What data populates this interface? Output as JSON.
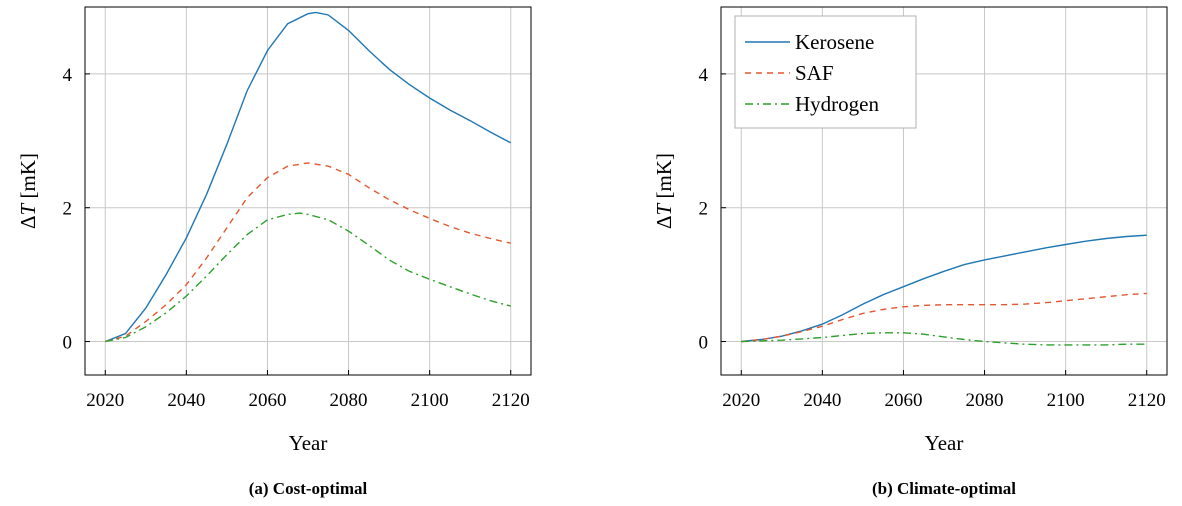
{
  "chart_data": [
    {
      "type": "line",
      "caption": "(a) Cost-optimal",
      "xlabel": "Year",
      "ylabel_main": "ΔT",
      "ylabel_unit": "[mK]",
      "xlim": [
        2015,
        2125
      ],
      "ylim": [
        -0.5,
        5.0
      ],
      "xticks": [
        2020,
        2040,
        2060,
        2080,
        2100,
        2120
      ],
      "yticks": [
        0,
        2,
        4
      ],
      "grid": true,
      "legend": "none",
      "series": [
        {
          "key": "kerosene",
          "color": "#1f77b4",
          "dash": "solid",
          "x": [
            2020,
            2025,
            2030,
            2035,
            2040,
            2045,
            2050,
            2055,
            2060,
            2065,
            2070,
            2072,
            2075,
            2080,
            2085,
            2090,
            2095,
            2100,
            2105,
            2110,
            2115,
            2120
          ],
          "y": [
            0.0,
            0.12,
            0.5,
            1.0,
            1.55,
            2.2,
            2.95,
            3.75,
            4.35,
            4.75,
            4.9,
            4.92,
            4.88,
            4.65,
            4.35,
            4.07,
            3.84,
            3.64,
            3.46,
            3.3,
            3.13,
            2.97
          ]
        },
        {
          "key": "saf",
          "color": "#e4572e",
          "dash": "6,5",
          "x": [
            2020,
            2025,
            2030,
            2035,
            2040,
            2045,
            2050,
            2055,
            2060,
            2065,
            2070,
            2075,
            2080,
            2085,
            2090,
            2095,
            2100,
            2105,
            2110,
            2115,
            2120
          ],
          "y": [
            0.0,
            0.08,
            0.3,
            0.55,
            0.85,
            1.25,
            1.7,
            2.15,
            2.45,
            2.62,
            2.67,
            2.62,
            2.5,
            2.3,
            2.12,
            1.97,
            1.84,
            1.72,
            1.62,
            1.54,
            1.47
          ]
        },
        {
          "key": "hydrogen",
          "color": "#2ca02c",
          "dash": "8,4,2,4",
          "x": [
            2020,
            2025,
            2030,
            2035,
            2040,
            2045,
            2050,
            2055,
            2060,
            2065,
            2068,
            2070,
            2075,
            2080,
            2085,
            2090,
            2095,
            2100,
            2105,
            2110,
            2115,
            2120
          ],
          "y": [
            0.0,
            0.06,
            0.22,
            0.43,
            0.68,
            0.98,
            1.3,
            1.6,
            1.82,
            1.9,
            1.92,
            1.9,
            1.82,
            1.65,
            1.44,
            1.22,
            1.05,
            0.93,
            0.82,
            0.71,
            0.61,
            0.53
          ]
        }
      ]
    },
    {
      "type": "line",
      "caption": "(b) Climate-optimal",
      "xlabel": "Year",
      "ylabel_main": "ΔT",
      "ylabel_unit": "[mK]",
      "xlim": [
        2015,
        2125
      ],
      "ylim": [
        -0.5,
        5.0
      ],
      "xticks": [
        2020,
        2040,
        2060,
        2080,
        2100,
        2120
      ],
      "yticks": [
        0,
        2,
        4
      ],
      "grid": true,
      "legend": "top-left",
      "series": [
        {
          "key": "kerosene",
          "name": "Kerosene",
          "color": "#1f77b4",
          "dash": "solid",
          "x": [
            2020,
            2025,
            2030,
            2035,
            2040,
            2045,
            2050,
            2055,
            2060,
            2065,
            2070,
            2075,
            2080,
            2085,
            2090,
            2095,
            2100,
            2105,
            2110,
            2115,
            2120
          ],
          "y": [
            0.0,
            0.03,
            0.08,
            0.16,
            0.26,
            0.4,
            0.56,
            0.7,
            0.82,
            0.94,
            1.05,
            1.15,
            1.22,
            1.28,
            1.34,
            1.4,
            1.45,
            1.5,
            1.54,
            1.57,
            1.59
          ]
        },
        {
          "key": "saf",
          "name": "SAF",
          "color": "#e4572e",
          "dash": "6,5",
          "x": [
            2020,
            2025,
            2030,
            2035,
            2040,
            2045,
            2050,
            2055,
            2060,
            2065,
            2070,
            2075,
            2080,
            2085,
            2090,
            2095,
            2100,
            2105,
            2110,
            2115,
            2120
          ],
          "y": [
            0.0,
            0.03,
            0.08,
            0.15,
            0.23,
            0.33,
            0.42,
            0.48,
            0.52,
            0.54,
            0.55,
            0.55,
            0.55,
            0.55,
            0.56,
            0.58,
            0.61,
            0.64,
            0.67,
            0.7,
            0.72
          ]
        },
        {
          "key": "hydrogen",
          "name": "Hydrogen",
          "color": "#2ca02c",
          "dash": "8,4,2,4",
          "x": [
            2020,
            2025,
            2030,
            2035,
            2040,
            2045,
            2050,
            2055,
            2060,
            2065,
            2070,
            2075,
            2080,
            2085,
            2090,
            2095,
            2100,
            2105,
            2110,
            2115,
            2120
          ],
          "y": [
            0.0,
            0.01,
            0.02,
            0.04,
            0.06,
            0.09,
            0.12,
            0.13,
            0.13,
            0.11,
            0.07,
            0.03,
            0.0,
            -0.02,
            -0.04,
            -0.05,
            -0.05,
            -0.05,
            -0.05,
            -0.04,
            -0.04
          ]
        }
      ]
    }
  ]
}
